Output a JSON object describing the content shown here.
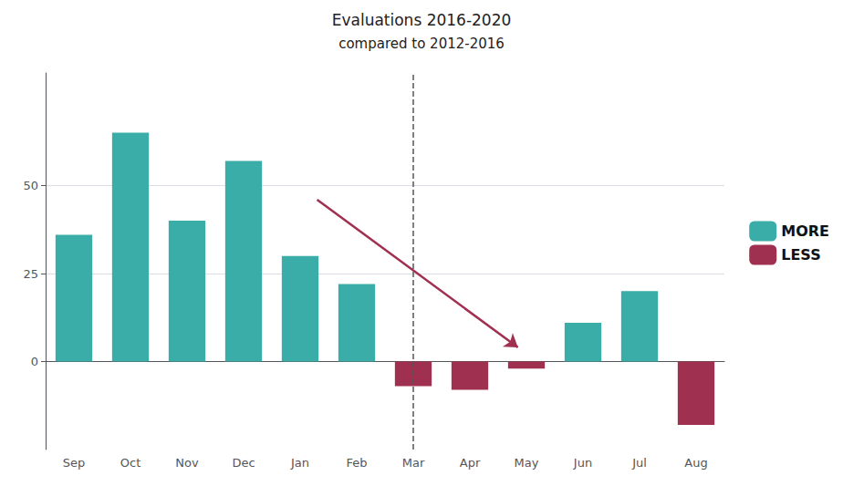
{
  "chart_data": {
    "type": "bar",
    "title": "Evaluations 2016-2020",
    "subtitle": "compared to 2012-2016",
    "categories": [
      "Sep",
      "Oct",
      "Nov",
      "Dec",
      "Jan",
      "Feb",
      "Mar",
      "Apr",
      "May",
      "Jun",
      "Jul",
      "Aug"
    ],
    "series": [
      {
        "name": "MORE",
        "color": "#3aada8",
        "values": [
          36,
          65,
          40,
          57,
          30,
          22,
          null,
          null,
          null,
          11,
          20,
          null
        ]
      },
      {
        "name": "LESS",
        "color": "#a03050",
        "values": [
          null,
          null,
          null,
          null,
          null,
          null,
          -7,
          -8,
          -2,
          null,
          null,
          -18
        ]
      }
    ],
    "ylim": [
      -25,
      82
    ],
    "yticks": [
      0,
      25,
      50
    ],
    "grid": true,
    "legend": "right",
    "annotations": [
      {
        "type": "vline",
        "x": "Mar",
        "color": "#555555",
        "line_style": "dashed"
      },
      {
        "type": "arrow",
        "from": [
          4.3,
          46
        ],
        "to": [
          7.85,
          4
        ],
        "color": "#a03050"
      }
    ]
  }
}
